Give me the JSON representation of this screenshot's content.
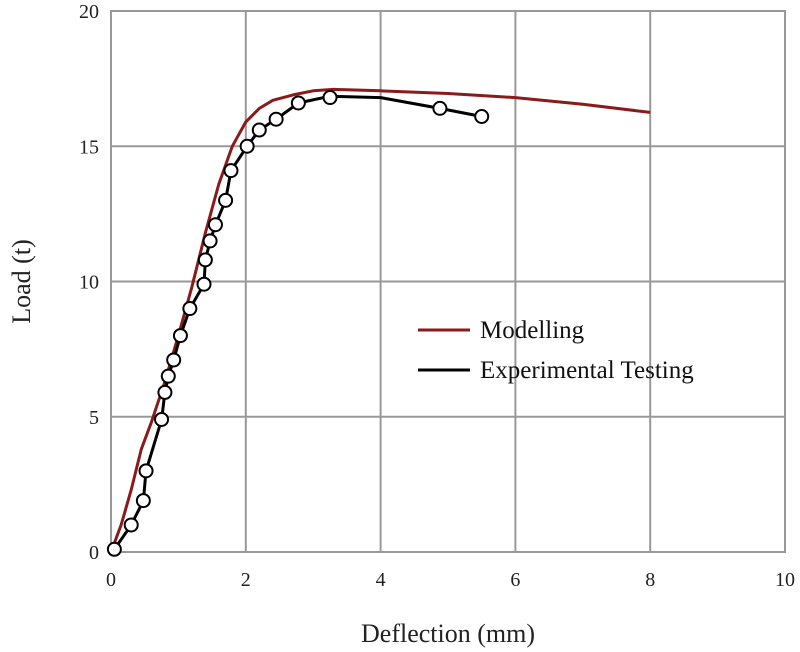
{
  "chart_data": {
    "type": "line",
    "xlabel": "Deflection (mm)",
    "ylabel": "Load (t)",
    "xlim": [
      0,
      10
    ],
    "ylim": [
      0,
      20
    ],
    "xticks": [
      "0",
      "2",
      "4",
      "6",
      "8",
      "10"
    ],
    "yticks": [
      "0",
      "5",
      "10",
      "15",
      "20"
    ],
    "grid": true,
    "legend_position": "center-right",
    "series": [
      {
        "name": "Modelling",
        "color": "#8b1a1a",
        "marker": "none",
        "x": [
          0,
          0.15,
          0.3,
          0.45,
          0.6,
          0.8,
          1.0,
          1.2,
          1.4,
          1.6,
          1.8,
          2.0,
          2.2,
          2.4,
          2.7,
          3.0,
          3.3,
          4.0,
          5.0,
          6.0,
          7.0,
          8.0
        ],
        "y": [
          0,
          1.0,
          2.3,
          3.8,
          4.8,
          6.3,
          8.0,
          9.8,
          11.8,
          13.6,
          15.0,
          15.9,
          16.4,
          16.7,
          16.9,
          17.05,
          17.1,
          17.05,
          16.95,
          16.8,
          16.55,
          16.25
        ]
      },
      {
        "name": "Experimental Testing",
        "color": "#000000",
        "marker": "circle",
        "x": [
          0.05,
          0.3,
          0.48,
          0.52,
          0.75,
          0.8,
          0.85,
          0.93,
          1.03,
          1.17,
          1.38,
          1.4,
          1.47,
          1.55,
          1.7,
          1.78,
          2.02,
          2.2,
          2.45,
          2.78,
          3.25,
          4.88,
          5.5
        ],
        "y": [
          0.1,
          1.0,
          1.9,
          3.0,
          4.9,
          5.9,
          6.5,
          7.1,
          8.0,
          9.0,
          9.9,
          10.8,
          11.5,
          12.1,
          13.0,
          14.1,
          15.0,
          15.6,
          16.0,
          16.6,
          16.8,
          16.4,
          16.1
        ],
        "line_x": [
          0.05,
          0.3,
          0.48,
          0.52,
          0.75,
          0.8,
          0.85,
          0.93,
          1.03,
          1.17,
          1.38,
          1.4,
          1.47,
          1.55,
          1.7,
          1.78,
          2.02,
          2.2,
          2.45,
          2.78,
          3.25,
          4.0,
          4.88,
          5.5
        ],
        "line_y": [
          0.1,
          1.0,
          1.9,
          3.0,
          4.9,
          5.9,
          6.5,
          7.1,
          8.0,
          9.0,
          9.9,
          10.8,
          11.5,
          12.1,
          13.0,
          14.1,
          15.0,
          15.6,
          16.0,
          16.6,
          16.85,
          16.8,
          16.4,
          16.1
        ]
      }
    ]
  }
}
